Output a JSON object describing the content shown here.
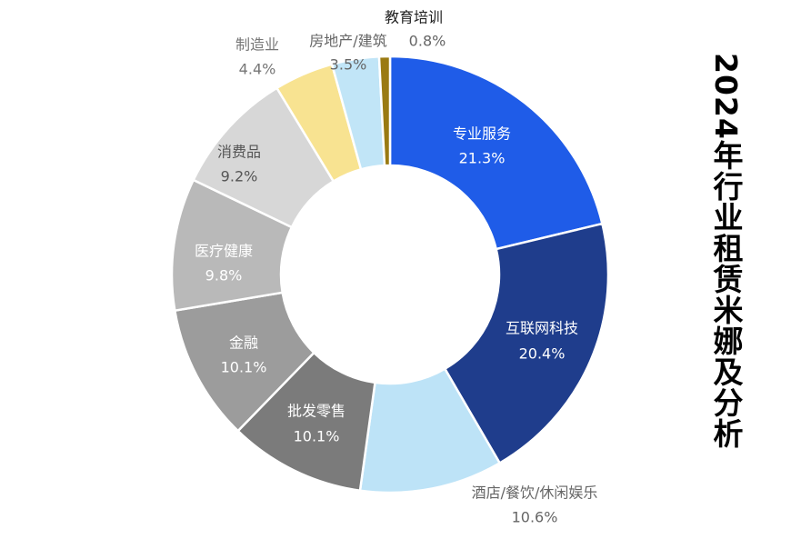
{
  "chart_data": {
    "type": "pie",
    "donut": true,
    "title": "2024年行业租赁米娜及分析",
    "start": "top",
    "direction": "clockwise",
    "slices": [
      {
        "label": "专业服务",
        "value": 21.3,
        "value_label": "21.3%",
        "color": "#1f5ce8"
      },
      {
        "label": "互联网科技",
        "value": 20.4,
        "value_label": "20.4%",
        "color": "#1f3d8c"
      },
      {
        "label": "酒店/餐饮/休闲娱乐",
        "value": 10.6,
        "value_label": "10.6%",
        "color": "#bde3f7"
      },
      {
        "label": "批发零售",
        "value": 10.1,
        "value_label": "10.1%",
        "color": "#7b7b7b"
      },
      {
        "label": "金融",
        "value": 10.1,
        "value_label": "10.1%",
        "color": "#9c9c9c"
      },
      {
        "label": "医疗健康",
        "value": 9.8,
        "value_label": "9.8%",
        "color": "#b9b9b9"
      },
      {
        "label": "消费品",
        "value": 9.2,
        "value_label": "9.2%",
        "color": "#d7d7d7"
      },
      {
        "label": "制造业",
        "value": 4.4,
        "value_label": "4.4%",
        "color": "#f8e391"
      },
      {
        "label": "房地产/建筑",
        "value": 3.5,
        "value_label": "3.5%",
        "color": "#c1e5f7"
      },
      {
        "label": "教育培训",
        "value": 0.8,
        "value_label": "0.8%",
        "color": "#9a7a12"
      }
    ]
  }
}
